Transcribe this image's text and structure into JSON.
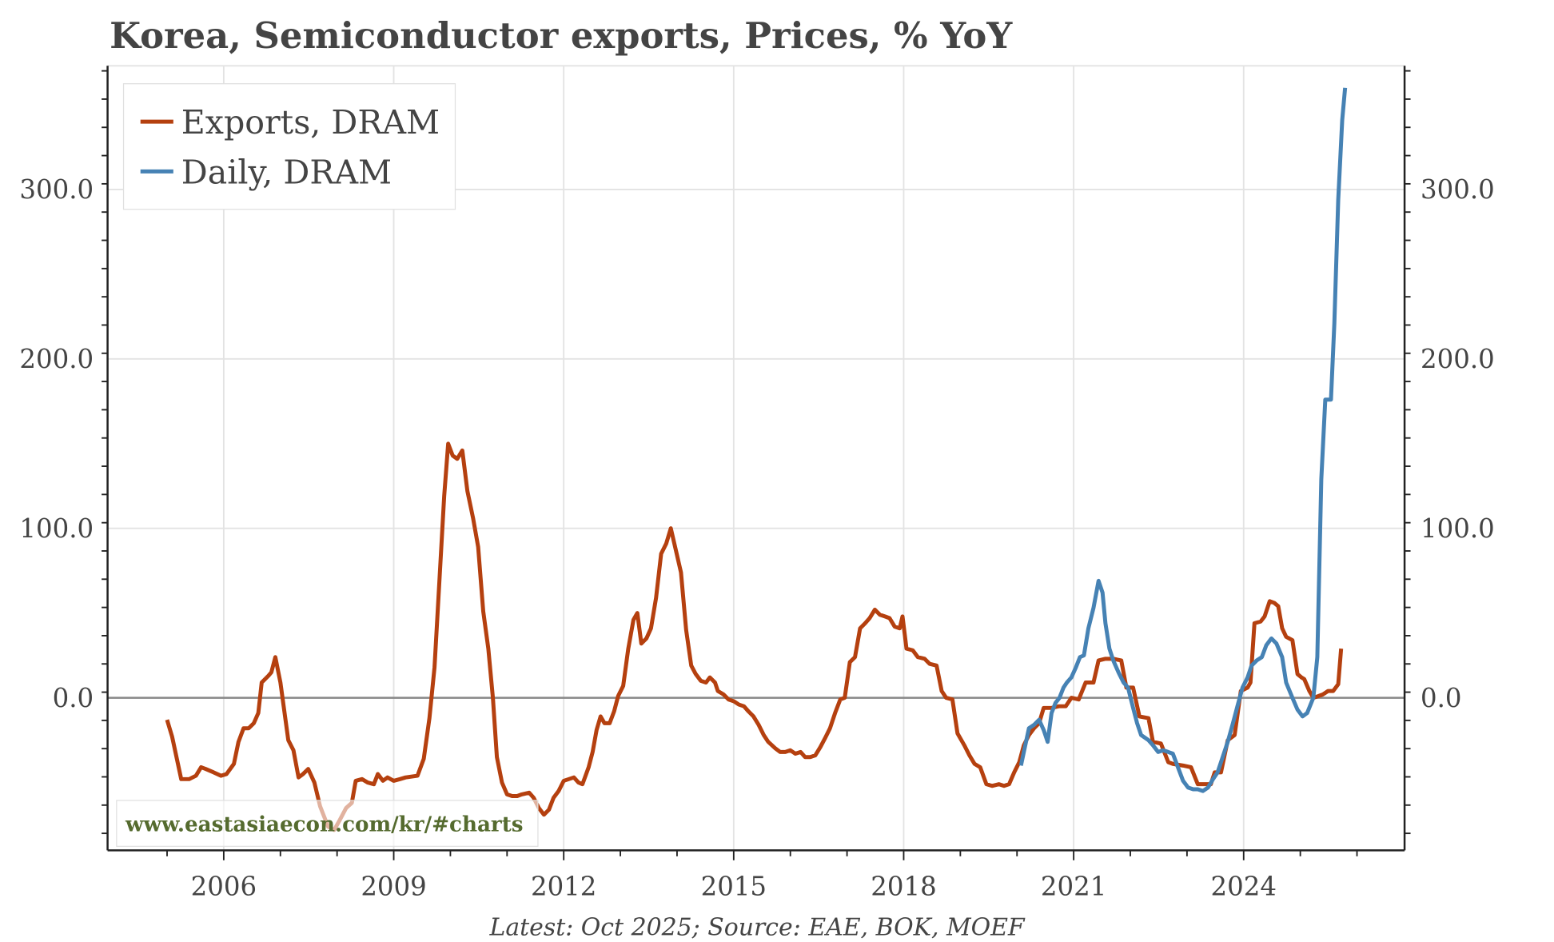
{
  "chart_data": {
    "type": "line",
    "title": "Korea, Semiconductor exports, Prices, % YoY",
    "source": "Latest: Oct 2025; Source: EAE, BOK, MOEF",
    "watermark": "www.eastasiaecon.com/kr/#charts",
    "xlim": [
      2003.95,
      2026.84
    ],
    "ylim": [
      -90,
      373
    ],
    "x_ticks": [
      2006,
      2009,
      2012,
      2015,
      2018,
      2021,
      2024
    ],
    "x_tick_labels": [
      "2006",
      "2009",
      "2012",
      "2015",
      "2018",
      "2021",
      "2024"
    ],
    "y_ticks": [
      0,
      100,
      200,
      300
    ],
    "y_tick_labels": [
      "0.0",
      "100.0",
      "200.0",
      "300.0"
    ],
    "grid": true,
    "legend_position": "top-left",
    "series": [
      {
        "name": "Exports, DRAM",
        "color": "#b5400f",
        "x": [
          2005.0,
          2005.09,
          2005.25,
          2005.39,
          2005.51,
          2005.6,
          2005.68,
          2005.82,
          2005.95,
          2006.05,
          2006.18,
          2006.26,
          2006.35,
          2006.44,
          2006.53,
          2006.61,
          2006.67,
          2006.79,
          2006.84,
          2006.91,
          2007.0,
          2007.14,
          2007.23,
          2007.32,
          2007.4,
          2007.49,
          2007.6,
          2007.7,
          2007.84,
          2007.95,
          2008.05,
          2008.16,
          2008.26,
          2008.33,
          2008.44,
          2008.54,
          2008.65,
          2008.72,
          2008.81,
          2008.89,
          2009.0,
          2009.11,
          2009.21,
          2009.42,
          2009.53,
          2009.63,
          2009.72,
          2009.81,
          2009.89,
          2009.96,
          2010.04,
          2010.12,
          2010.21,
          2010.3,
          2010.4,
          2010.49,
          2010.58,
          2010.67,
          2010.75,
          2010.82,
          2010.91,
          2011.0,
          2011.09,
          2011.18,
          2011.26,
          2011.39,
          2011.47,
          2011.56,
          2011.65,
          2011.74,
          2011.82,
          2011.91,
          2012.0,
          2012.09,
          2012.18,
          2012.26,
          2012.33,
          2012.44,
          2012.51,
          2012.58,
          2012.65,
          2012.72,
          2012.81,
          2012.89,
          2012.96,
          2013.05,
          2013.14,
          2013.23,
          2013.3,
          2013.37,
          2013.46,
          2013.54,
          2013.63,
          2013.72,
          2013.81,
          2013.89,
          2013.98,
          2014.07,
          2014.16,
          2014.25,
          2014.33,
          2014.42,
          2014.51,
          2014.58,
          2014.67,
          2014.72,
          2014.82,
          2014.91,
          2015.0,
          2015.09,
          2015.18,
          2015.26,
          2015.35,
          2015.44,
          2015.53,
          2015.61,
          2015.74,
          2015.82,
          2015.91,
          2016.0,
          2016.09,
          2016.18,
          2016.26,
          2016.35,
          2016.44,
          2016.53,
          2016.61,
          2016.7,
          2016.79,
          2016.88,
          2016.96,
          2017.05,
          2017.14,
          2017.23,
          2017.32,
          2017.4,
          2017.49,
          2017.58,
          2017.67,
          2017.75,
          2017.84,
          2017.93,
          2017.98,
          2018.05,
          2018.16,
          2018.25,
          2018.37,
          2018.46,
          2018.58,
          2018.67,
          2018.75,
          2018.86,
          2018.95,
          2019.07,
          2019.16,
          2019.25,
          2019.35,
          2019.46,
          2019.56,
          2019.68,
          2019.77,
          2019.86,
          2019.95,
          2020.04,
          2020.12,
          2020.21,
          2020.3,
          2020.39,
          2020.47,
          2020.61,
          2020.74,
          2020.86,
          2020.96,
          2021.09,
          2021.21,
          2021.35,
          2021.44,
          2021.56,
          2021.7,
          2021.84,
          2021.93,
          2022.05,
          2022.16,
          2022.32,
          2022.4,
          2022.54,
          2022.67,
          2022.75,
          2022.93,
          2023.07,
          2023.19,
          2023.32,
          2023.42,
          2023.49,
          2023.6,
          2023.72,
          2023.84,
          2023.95,
          2024.07,
          2024.12,
          2024.19,
          2024.3,
          2024.37,
          2024.46,
          2024.54,
          2024.61,
          2024.68,
          2024.75,
          2024.86,
          2024.95,
          2025.02,
          2025.07,
          2025.16,
          2025.23,
          2025.32,
          2025.4,
          2025.49,
          2025.58,
          2025.67,
          2025.72
        ],
        "values": [
          -13,
          -23,
          -48,
          -48,
          -46,
          -41,
          -42,
          -44,
          -46,
          -45,
          -39,
          -26,
          -18,
          -18,
          -15,
          -9,
          9,
          13,
          15,
          24,
          9,
          -25,
          -31,
          -47,
          -45,
          -42,
          -50,
          -64,
          -76,
          -78,
          -72,
          -65,
          -62,
          -49,
          -48,
          -50,
          -51,
          -45,
          -49,
          -47,
          -49,
          -48,
          -47,
          -46,
          -36,
          -12,
          18,
          71,
          119,
          150,
          143,
          141,
          146,
          122,
          106,
          89,
          51,
          29,
          0,
          -35,
          -50,
          -57,
          -58,
          -58,
          -57,
          -56,
          -59,
          -65,
          -69,
          -66,
          -59,
          -55,
          -49,
          -48,
          -47,
          -50,
          -51,
          -41,
          -32,
          -19,
          -11,
          -15,
          -15,
          -8,
          1,
          7,
          29,
          46,
          50,
          32,
          35,
          41,
          59,
          85,
          91,
          100,
          87,
          74,
          40,
          19,
          14,
          10,
          9,
          12,
          9,
          4,
          2,
          -1,
          -2,
          -4,
          -5,
          -8,
          -11,
          -16,
          -22,
          -26,
          -30,
          -32,
          -32,
          -31,
          -33,
          -32,
          -35,
          -35,
          -34,
          -29,
          -24,
          -18,
          -9,
          -1,
          0,
          21,
          24,
          41,
          44,
          47,
          52,
          49,
          48,
          47,
          42,
          41,
          48,
          29,
          28,
          24,
          23,
          20,
          19,
          4,
          0,
          -1,
          -21,
          -28,
          -34,
          -39,
          -41,
          -51,
          -52,
          -51,
          -52,
          -51,
          -44,
          -38,
          -28,
          -22,
          -18,
          -15,
          -6,
          -6,
          -5,
          -5,
          0,
          -1,
          9,
          9,
          22,
          23,
          23,
          22,
          6,
          6,
          -11,
          -12,
          -26,
          -27,
          -38,
          -39,
          -40,
          -41,
          -51,
          -51,
          -51,
          -44,
          -44,
          -25,
          -22,
          4,
          6,
          9,
          44,
          45,
          48,
          57,
          56,
          54,
          41,
          36,
          34,
          14,
          12,
          11,
          4,
          0,
          1,
          2,
          4,
          4,
          8,
          29
        ]
      },
      {
        "name": "Daily, DRAM",
        "color": "#4682b4",
        "x": [
          2020.07,
          2020.12,
          2020.21,
          2020.3,
          2020.39,
          2020.47,
          2020.54,
          2020.61,
          2020.68,
          2020.75,
          2020.82,
          2020.88,
          2020.96,
          2021.04,
          2021.11,
          2021.18,
          2021.26,
          2021.35,
          2021.44,
          2021.51,
          2021.56,
          2021.63,
          2021.7,
          2021.79,
          2021.88,
          2021.96,
          2022.05,
          2022.12,
          2022.19,
          2022.32,
          2022.4,
          2022.49,
          2022.58,
          2022.67,
          2022.75,
          2022.84,
          2022.93,
          2023.02,
          2023.11,
          2023.19,
          2023.28,
          2023.37,
          2023.46,
          2023.54,
          2023.63,
          2023.72,
          2023.81,
          2023.89,
          2023.98,
          2024.07,
          2024.14,
          2024.23,
          2024.32,
          2024.4,
          2024.49,
          2024.58,
          2024.68,
          2024.75,
          2024.86,
          2024.95,
          2025.04,
          2025.12,
          2025.23,
          2025.3,
          2025.37,
          2025.44,
          2025.54,
          2025.6,
          2025.67,
          2025.74,
          2025.79
        ],
        "values": [
          -40,
          -32,
          -18,
          -16,
          -13,
          -19,
          -26,
          -9,
          -3,
          0,
          6,
          9,
          12,
          18,
          24,
          25,
          41,
          53,
          69,
          62,
          44,
          29,
          22,
          15,
          9,
          6,
          -6,
          -15,
          -22,
          -25,
          -28,
          -32,
          -31,
          -32,
          -33,
          -41,
          -49,
          -53,
          -54,
          -54,
          -55,
          -53,
          -48,
          -44,
          -35,
          -26,
          -15,
          -5,
          6,
          12,
          19,
          22,
          24,
          31,
          35,
          32,
          24,
          9,
          0,
          -7,
          -11,
          -9,
          0,
          24,
          129,
          176,
          176,
          221,
          294,
          341,
          360
        ]
      }
    ]
  }
}
